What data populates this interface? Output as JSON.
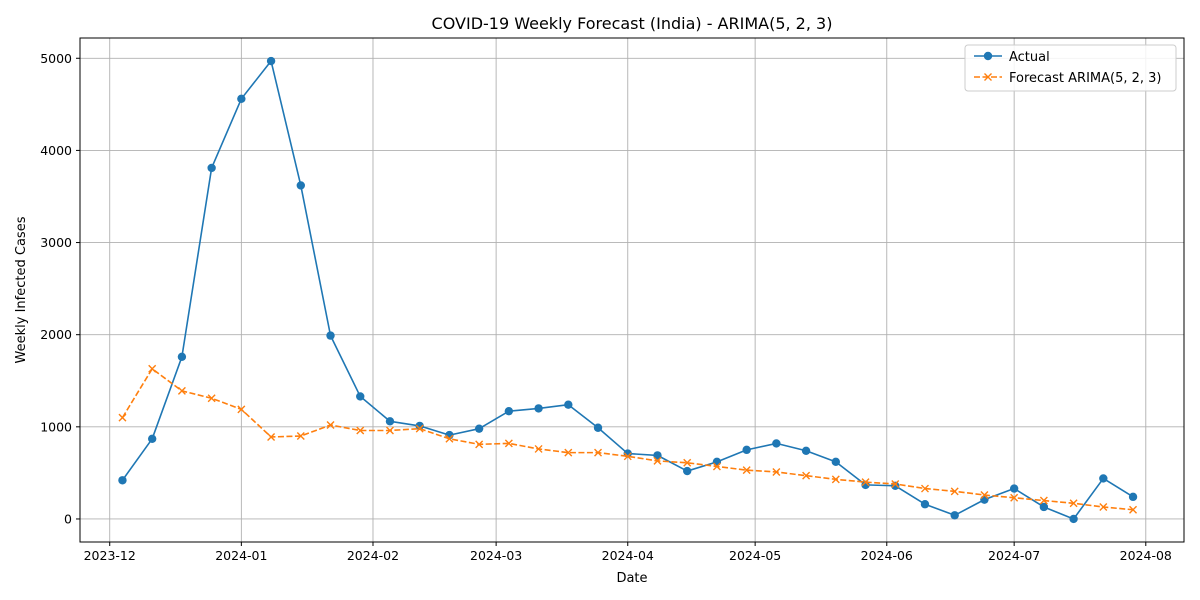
{
  "chart_data": {
    "type": "line",
    "title": "COVID-19 Weekly Forecast (India) - ARIMA(5, 2, 3)",
    "xlabel": "Date",
    "ylabel": "Weekly Infected Cases",
    "grid": true,
    "legend_position": "top-right",
    "xlim": [
      "2023-11-24",
      "2024-08-10"
    ],
    "ylim": [
      -250,
      5220
    ],
    "x_ticks": [
      "2023-12",
      "2024-01",
      "2024-02",
      "2024-03",
      "2024-04",
      "2024-05",
      "2024-06",
      "2024-07",
      "2024-08"
    ],
    "y_ticks": [
      0,
      1000,
      2000,
      3000,
      4000,
      5000
    ],
    "x": [
      "2023-12-04",
      "2023-12-11",
      "2023-12-18",
      "2023-12-25",
      "2024-01-01",
      "2024-01-08",
      "2024-01-15",
      "2024-01-22",
      "2024-01-29",
      "2024-02-05",
      "2024-02-12",
      "2024-02-19",
      "2024-02-26",
      "2024-03-04",
      "2024-03-11",
      "2024-03-18",
      "2024-03-25",
      "2024-04-01",
      "2024-04-08",
      "2024-04-15",
      "2024-04-22",
      "2024-04-29",
      "2024-05-06",
      "2024-05-13",
      "2024-05-20",
      "2024-05-27",
      "2024-06-03",
      "2024-06-10",
      "2024-06-17",
      "2024-06-24",
      "2024-07-01",
      "2024-07-08",
      "2024-07-15",
      "2024-07-22",
      "2024-07-29"
    ],
    "series": [
      {
        "name": "Actual",
        "color": "#1f77b4",
        "line_style": "solid",
        "marker": "circle",
        "values": [
          420,
          870,
          1760,
          3810,
          4560,
          4970,
          3620,
          1990,
          1330,
          1060,
          1010,
          910,
          980,
          1170,
          1200,
          1240,
          990,
          710,
          690,
          520,
          620,
          750,
          820,
          740,
          620,
          370,
          360,
          160,
          40,
          210,
          330,
          130,
          0,
          440,
          240
        ]
      },
      {
        "name": "Forecast ARIMA(5, 2, 3)",
        "color": "#ff7f0e",
        "line_style": "dashed",
        "marker": "x",
        "values": [
          1100,
          1630,
          1390,
          1310,
          1190,
          890,
          900,
          1020,
          960,
          960,
          980,
          870,
          810,
          820,
          760,
          720,
          720,
          680,
          630,
          610,
          570,
          530,
          510,
          470,
          430,
          400,
          380,
          330,
          300,
          260,
          230,
          200,
          170,
          130,
          100
        ]
      }
    ]
  }
}
